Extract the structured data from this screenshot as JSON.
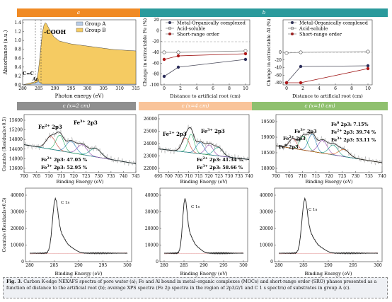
{
  "bands": {
    "a": {
      "label": "a",
      "color": "#f08a24"
    },
    "b": {
      "label": "b",
      "color": "#2a9a9c"
    },
    "c1": {
      "label": "c (x=2 cm)",
      "color": "#8f8f8f"
    },
    "c2": {
      "label": "c (x=4 cm)",
      "color": "#f9c49a"
    },
    "c3": {
      "label": "c (x=10 cm)",
      "color": "#8fc06e"
    }
  },
  "panel_a": {
    "ylabel": "Absorbance (a.u.)",
    "xlabel": "Photon energy (eV)",
    "yticks": [
      "1.4",
      "1.2",
      "1.0",
      "0.8",
      "0.6",
      "0.4",
      "0.2",
      "0.0"
    ],
    "xticks": [
      "280",
      "285",
      "290",
      "295",
      "300",
      "305",
      "310",
      "315"
    ],
    "legend": [
      "Group A",
      "Group B"
    ],
    "ann_cooh": "-COOH",
    "ann_cc": "C=C",
    "ann_ar": "Ar",
    "colors": {
      "group_a": "#b8cde8",
      "group_b": "#f5cb62"
    }
  },
  "panel_b_fe": {
    "ylabel": "Change in extractable Fe (%)",
    "xlabel": "Distance to artificial root (cm)",
    "legend": [
      "Metal-Organically complexed",
      "Acid-soluble",
      "Short-range order"
    ],
    "yticks": [
      "20",
      "0",
      "-20",
      "-40",
      "-60",
      "-80",
      "-100"
    ],
    "xticks": [
      "0",
      "2",
      "4",
      "6",
      "8",
      "10"
    ]
  },
  "panel_b_al": {
    "ylabel": "Change in extractable Al (%)",
    "xlabel": "Distance to artificial root (cm)",
    "legend": [
      "Metal-Organically complexed",
      "Acid-soluble",
      "Short-range order"
    ],
    "yticks": [
      "0",
      "-20",
      "-40",
      "-60",
      "-80"
    ],
    "xticks": [
      "0",
      "2",
      "4",
      "6",
      "8",
      "10"
    ]
  },
  "xps_fe": {
    "ylabel": "Counts/s (Residuals×0.5)",
    "xlabel": "Binding Energy (eV)",
    "p1": {
      "yticks": [
        "15600",
        "15200",
        "14800",
        "14400",
        "14000",
        "13600"
      ],
      "xticks": [
        "700",
        "705",
        "710",
        "715",
        "720",
        "725",
        "730",
        "735",
        "740",
        "745"
      ],
      "ann1": "Fe2+ 2p3",
      "ann2": "Fe3+ 2p3",
      "res1": "Fe2+ 2p3: 47.05 %",
      "res2": "Fe3+ 2p3: 52.95 %"
    },
    "p2": {
      "yticks": [
        "26000",
        "25000",
        "24000",
        "23000",
        "22000"
      ],
      "xticks": [
        "695",
        "700",
        "705",
        "710",
        "715",
        "720",
        "725",
        "730",
        "735",
        "740"
      ],
      "ann1": "Fe2+ 2p3",
      "ann2": "Fe3+ 2p3",
      "res1": "Fe2+ 2p3: 41.34 %",
      "res2": "Fe3+ 2p3: 58.66 %"
    },
    "p3": {
      "yticks": [
        "19500",
        "19000",
        "18500",
        "18000"
      ],
      "xticks": [
        "700",
        "705",
        "710",
        "715",
        "720",
        "725",
        "730",
        "735",
        "740"
      ],
      "ann0": "Fe0 2p3",
      "ann1": "Fe2+ 2p3",
      "ann2": "Fe3+ 2p3",
      "res0": "Fe0 2p3: 7.15%",
      "res1": "Fe2+ 2p3: 39.74 %",
      "res2": "Fe3+ 2p3: 53.11 %"
    }
  },
  "xps_c": {
    "ylabel": "Counts/s (Residuals×0.5)",
    "xlabel": "Binding Energy (eV)",
    "label": "C 1s",
    "yticks": [
      "40000",
      "30000",
      "20000",
      "10000",
      "0"
    ],
    "xticks": [
      "280",
      "285",
      "290",
      "295",
      "300"
    ]
  },
  "caption": {
    "fig": "Fig. 3.",
    "text": " Carbon K-edge NEXAFS spectra of pore water (a); Fe and Al bound in metal–organic complexes (MOCs) and short-range order (SRO) phases presented as a function of distance to the artificial root (b); average XPS spectra (Fe 2p spectra in the region of 2p3/2/1 and C 1 s spectra) of substrates in group A (c)."
  }
}
